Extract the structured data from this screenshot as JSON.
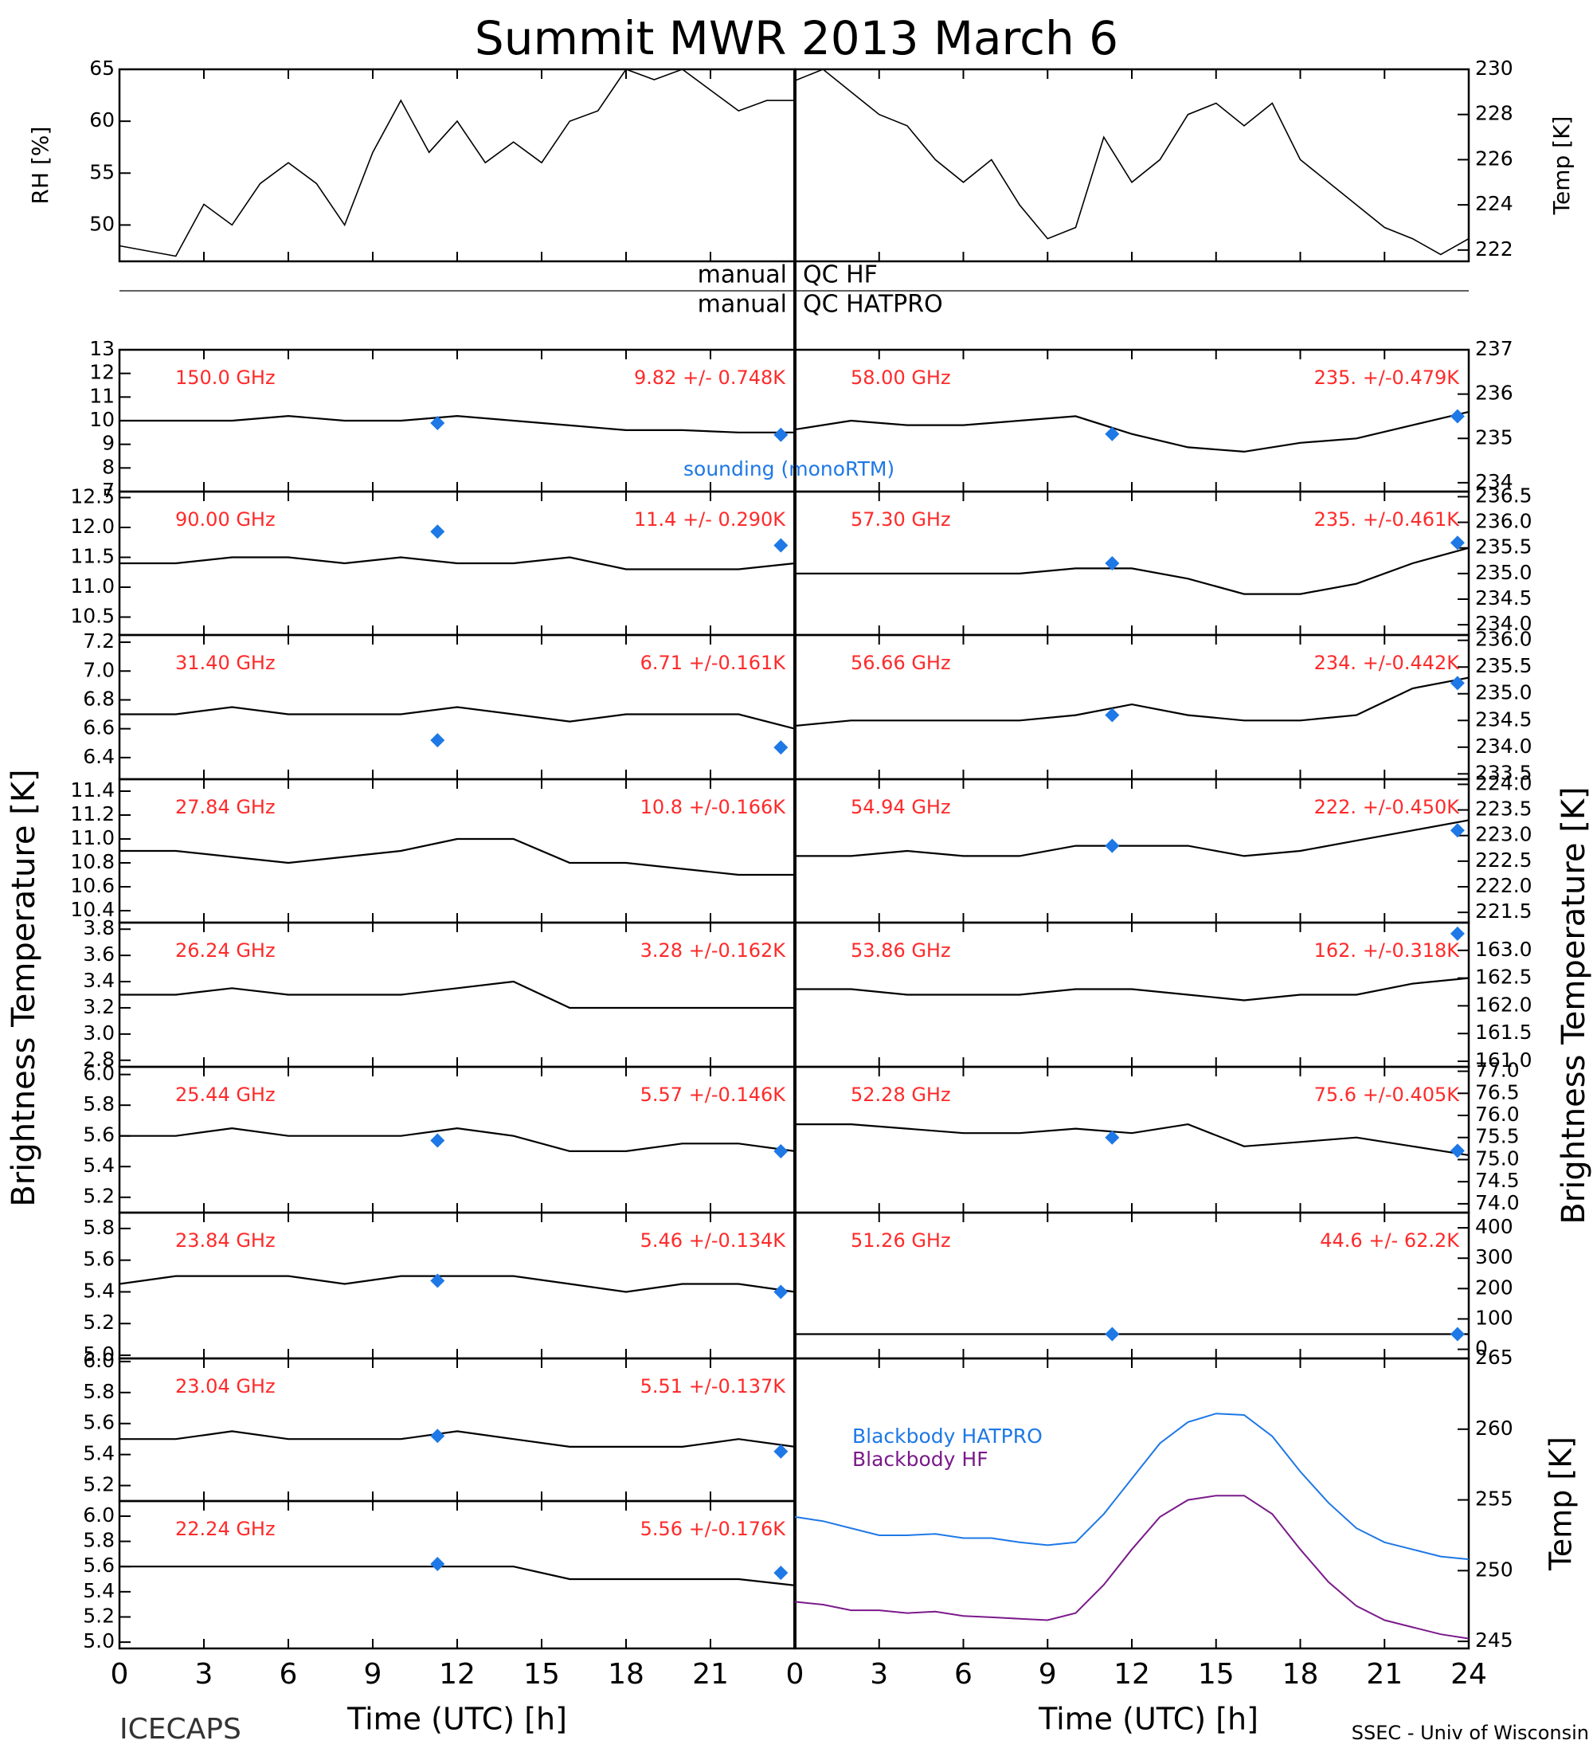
{
  "title": "Summit MWR 2013 March  6",
  "qc": [
    {
      "left": "manual",
      "right": "QC HF"
    },
    {
      "left": "manual",
      "right": "QC HATPRO"
    }
  ],
  "ylabel": "Brightness Temperature [K]",
  "sounding_label": "sounding (monoRTM)",
  "xlabel": "Time (UTC) [h]",
  "xlim": [
    0,
    24
  ],
  "xticks_left": [
    0,
    3,
    6,
    9,
    12,
    15,
    18,
    21
  ],
  "xticks_right": [
    0,
    3,
    6,
    9,
    12,
    15,
    18,
    21,
    24
  ],
  "footer_left": "ICECAPS",
  "footer_right": "SSEC - Univ of Wisconsin",
  "chart_data": [
    {
      "type": "line",
      "ylabel": "RH [%]",
      "ylim": [
        46.5,
        65
      ],
      "yticks": [
        50,
        55,
        60,
        65
      ],
      "x": [
        0,
        1,
        2,
        3,
        4,
        5,
        6,
        7,
        8,
        9,
        10,
        11,
        12,
        13,
        14,
        15,
        16,
        17,
        18,
        19,
        20,
        21,
        22,
        23,
        24
      ],
      "values": [
        48,
        47.5,
        47,
        52,
        50,
        54,
        56,
        54,
        50,
        57,
        62,
        57,
        60,
        56,
        58,
        56,
        60,
        61,
        65,
        64,
        65,
        63,
        61,
        62,
        62
      ]
    },
    {
      "type": "line",
      "ylabel": "Temp [K]",
      "ylim": [
        221.5,
        230
      ],
      "yticks": [
        222,
        224,
        226,
        228,
        230
      ],
      "x": [
        0,
        1,
        2,
        3,
        4,
        5,
        6,
        7,
        8,
        9,
        10,
        11,
        12,
        13,
        14,
        15,
        16,
        17,
        18,
        19,
        20,
        21,
        22,
        23,
        24
      ],
      "values": [
        229.5,
        230,
        229,
        228,
        227.5,
        226,
        225,
        226,
        224,
        222.5,
        223,
        227,
        225,
        226,
        228,
        228.5,
        227.5,
        228.5,
        226,
        225,
        224,
        223,
        222.5,
        221.8,
        222.5
      ]
    },
    {
      "type": "line",
      "label": "150.0 GHz",
      "stats": "9.82 +/- 0.748K",
      "ylim": [
        7,
        13
      ],
      "yticks": [
        7,
        8,
        9,
        10,
        11,
        12,
        13
      ],
      "x": [
        0,
        2,
        4,
        6,
        8,
        10,
        12,
        14,
        16,
        18,
        20,
        22,
        24
      ],
      "values": [
        10,
        10,
        10,
        10.2,
        10,
        10,
        10.2,
        10,
        9.8,
        9.6,
        9.6,
        9.5,
        9.5
      ],
      "sounding": {
        "x": [
          11.3,
          23.5
        ],
        "values": [
          9.9,
          9.4
        ]
      }
    },
    {
      "type": "line",
      "label": "90.00 GHz",
      "stats": "11.4 +/- 0.290K",
      "ylim": [
        10.2,
        12.6
      ],
      "yticks": [
        10.5,
        {
          "value": 11,
          "label": "11.0"
        },
        11.5,
        {
          "value": 12,
          "label": "12.0"
        },
        12.5
      ],
      "x": [
        0,
        2,
        4,
        6,
        8,
        10,
        12,
        14,
        16,
        18,
        20,
        22,
        24
      ],
      "values": [
        11.4,
        11.4,
        11.5,
        11.5,
        11.4,
        11.5,
        11.4,
        11.4,
        11.5,
        11.3,
        11.3,
        11.3,
        11.4
      ],
      "sounding": {
        "x": [
          11.3,
          23.5
        ],
        "values": [
          11.93,
          11.7
        ]
      }
    },
    {
      "type": "line",
      "label": "31.40 GHz",
      "stats": "6.71 +/-0.161K",
      "ylim": [
        6.25,
        7.25
      ],
      "yticks": [
        6.4,
        6.6,
        6.8,
        {
          "value": 7,
          "label": "7.0"
        },
        7.2
      ],
      "x": [
        0,
        2,
        4,
        6,
        8,
        10,
        12,
        14,
        16,
        18,
        20,
        22,
        24
      ],
      "values": [
        6.7,
        6.7,
        6.75,
        6.7,
        6.7,
        6.7,
        6.75,
        6.7,
        6.65,
        6.7,
        6.7,
        6.7,
        6.6
      ],
      "sounding": {
        "x": [
          11.3,
          23.5
        ],
        "values": [
          6.52,
          6.47
        ]
      }
    },
    {
      "type": "line",
      "label": "27.84 GHz",
      "stats": "10.8 +/-0.166K",
      "ylim": [
        10.3,
        11.5
      ],
      "yticks": [
        10.4,
        10.6,
        10.8,
        {
          "value": 11,
          "label": "11.0"
        },
        11.2,
        11.4
      ],
      "x": [
        0,
        2,
        4,
        6,
        8,
        10,
        12,
        14,
        16,
        18,
        20,
        22,
        24
      ],
      "values": [
        10.9,
        10.9,
        10.85,
        10.8,
        10.85,
        10.9,
        11,
        11,
        10.8,
        10.8,
        10.75,
        10.7,
        10.7
      ]
    },
    {
      "type": "line",
      "label": "26.24 GHz",
      "stats": "3.28 +/-0.162K",
      "ylim": [
        2.75,
        3.85
      ],
      "yticks": [
        2.8,
        {
          "value": 3,
          "label": "3.0"
        },
        3.2,
        3.4,
        3.6,
        3.8
      ],
      "x": [
        0,
        2,
        4,
        6,
        8,
        10,
        12,
        14,
        16,
        18,
        20,
        22,
        24
      ],
      "values": [
        3.3,
        3.3,
        3.35,
        3.3,
        3.3,
        3.3,
        3.35,
        3.4,
        3.2,
        3.2,
        3.2,
        3.2,
        3.2
      ]
    },
    {
      "type": "line",
      "label": "25.44 GHz",
      "stats": "5.57 +/-0.146K",
      "ylim": [
        5.1,
        6.05
      ],
      "yticks": [
        5.2,
        5.4,
        5.6,
        5.8,
        {
          "value": 6,
          "label": "6.0"
        }
      ],
      "x": [
        0,
        2,
        4,
        6,
        8,
        10,
        12,
        14,
        16,
        18,
        20,
        22,
        24
      ],
      "values": [
        5.6,
        5.6,
        5.65,
        5.6,
        5.6,
        5.6,
        5.65,
        5.6,
        5.5,
        5.5,
        5.55,
        5.55,
        5.5
      ],
      "sounding": {
        "x": [
          11.3,
          23.5
        ],
        "values": [
          5.57,
          5.5
        ]
      }
    },
    {
      "type": "line",
      "label": "23.84 GHz",
      "stats": "5.46 +/-0.134K",
      "ylim": [
        4.98,
        5.9
      ],
      "yticks": [
        {
          "value": 5,
          "label": "5.0"
        },
        5.2,
        5.4,
        5.6,
        5.8
      ],
      "x": [
        0,
        2,
        4,
        6,
        8,
        10,
        12,
        14,
        16,
        18,
        20,
        22,
        24
      ],
      "values": [
        5.45,
        5.5,
        5.5,
        5.5,
        5.45,
        5.5,
        5.5,
        5.5,
        5.45,
        5.4,
        5.45,
        5.45,
        5.4
      ],
      "sounding": {
        "x": [
          11.3,
          23.5
        ],
        "values": [
          5.47,
          5.4
        ]
      }
    },
    {
      "type": "line",
      "label": "23.04 GHz",
      "stats": "5.51 +/-0.137K",
      "ylim": [
        5.1,
        6.02
      ],
      "yticks": [
        5.2,
        5.4,
        5.6,
        5.8,
        {
          "value": 6,
          "label": "6.0"
        }
      ],
      "x": [
        0,
        2,
        4,
        6,
        8,
        10,
        12,
        14,
        16,
        18,
        20,
        22,
        24
      ],
      "values": [
        5.5,
        5.5,
        5.55,
        5.5,
        5.5,
        5.5,
        5.55,
        5.5,
        5.45,
        5.45,
        5.45,
        5.5,
        5.45
      ],
      "sounding": {
        "x": [
          11.3,
          23.5
        ],
        "values": [
          5.52,
          5.42
        ]
      }
    },
    {
      "type": "line",
      "label": "22.24 GHz",
      "stats": "5.56 +/-0.176K",
      "ylim": [
        4.95,
        6.12
      ],
      "yticks": [
        {
          "value": 5,
          "label": "5.0"
        },
        5.2,
        5.4,
        5.6,
        5.8,
        {
          "value": 6,
          "label": "6.0"
        }
      ],
      "x": [
        0,
        2,
        4,
        6,
        8,
        10,
        12,
        14,
        16,
        18,
        20,
        22,
        24
      ],
      "values": [
        5.6,
        5.6,
        5.6,
        5.6,
        5.6,
        5.6,
        5.6,
        5.6,
        5.5,
        5.5,
        5.5,
        5.5,
        5.45
      ],
      "sounding": {
        "x": [
          11.3,
          23.5
        ],
        "values": [
          5.62,
          5.55
        ]
      }
    },
    {
      "type": "line",
      "label": "58.00 GHz",
      "stats": "235. +/-0.479K",
      "ylim": [
        233.8,
        237
      ],
      "yticks": [
        234,
        235,
        236,
        237
      ],
      "x": [
        0,
        2,
        4,
        6,
        8,
        10,
        12,
        14,
        16,
        18,
        20,
        22,
        24
      ],
      "values": [
        235.2,
        235.4,
        235.3,
        235.3,
        235.4,
        235.5,
        235.1,
        234.8,
        234.7,
        234.9,
        235,
        235.3,
        235.6
      ],
      "sounding": {
        "x": [
          11.3,
          23.6
        ],
        "values": [
          235.1,
          235.5
        ]
      }
    },
    {
      "type": "line",
      "label": "57.30 GHz",
      "stats": "235. +/-0.461K",
      "ylim": [
        233.8,
        236.6
      ],
      "yticks": [
        {
          "value": 234,
          "label": "234.0"
        },
        234.5,
        {
          "value": 235,
          "label": "235.0"
        },
        235.5,
        {
          "value": 236,
          "label": "236.0"
        },
        236.5
      ],
      "x": [
        0,
        2,
        4,
        6,
        8,
        10,
        12,
        14,
        16,
        18,
        20,
        22,
        24
      ],
      "values": [
        235,
        235,
        235,
        235,
        235,
        235.1,
        235.1,
        234.9,
        234.6,
        234.6,
        234.8,
        235.2,
        235.5
      ],
      "sounding": {
        "x": [
          11.3,
          23.6
        ],
        "values": [
          235.2,
          235.6
        ]
      }
    },
    {
      "type": "line",
      "label": "56.66 GHz",
      "stats": "234. +/-0.442K",
      "ylim": [
        233.4,
        236.1
      ],
      "yticks": [
        233.5,
        {
          "value": 234,
          "label": "234.0"
        },
        234.5,
        {
          "value": 235,
          "label": "235.0"
        },
        235.5,
        {
          "value": 236,
          "label": "236.0"
        }
      ],
      "x": [
        0,
        2,
        4,
        6,
        8,
        10,
        12,
        14,
        16,
        18,
        20,
        22,
        24
      ],
      "values": [
        234.4,
        234.5,
        234.5,
        234.5,
        234.5,
        234.6,
        234.8,
        234.6,
        234.5,
        234.5,
        234.6,
        235.1,
        235.3
      ],
      "sounding": {
        "x": [
          11.3,
          23.6
        ],
        "values": [
          234.6,
          235.2
        ]
      }
    },
    {
      "type": "line",
      "label": "54.94 GHz",
      "stats": "222. +/-0.450K",
      "ylim": [
        221.3,
        224.1
      ],
      "yticks": [
        221.5,
        {
          "value": 222,
          "label": "222.0"
        },
        222.5,
        {
          "value": 223,
          "label": "223.0"
        },
        223.5,
        {
          "value": 224,
          "label": "224.0"
        }
      ],
      "x": [
        0,
        2,
        4,
        6,
        8,
        10,
        12,
        14,
        16,
        18,
        20,
        22,
        24
      ],
      "values": [
        222.6,
        222.6,
        222.7,
        222.6,
        222.6,
        222.8,
        222.8,
        222.8,
        222.6,
        222.7,
        222.9,
        223.1,
        223.3
      ],
      "sounding": {
        "x": [
          11.3,
          23.6
        ],
        "values": [
          222.8,
          223.1
        ]
      }
    },
    {
      "type": "line",
      "label": "53.86 GHz",
      "stats": "162. +/-0.318K",
      "ylim": [
        160.9,
        163.5
      ],
      "yticks": [
        {
          "value": 161,
          "label": "161.0"
        },
        161.5,
        {
          "value": 162,
          "label": "162.0"
        },
        162.5,
        {
          "value": 163,
          "label": "163.0"
        }
      ],
      "x": [
        0,
        2,
        4,
        6,
        8,
        10,
        12,
        14,
        16,
        18,
        20,
        22,
        24
      ],
      "values": [
        162.3,
        162.3,
        162.2,
        162.2,
        162.2,
        162.3,
        162.3,
        162.2,
        162.1,
        162.2,
        162.2,
        162.4,
        162.5
      ],
      "sounding": {
        "x": [
          23.6
        ],
        "values": [
          163.3
        ]
      }
    },
    {
      "type": "line",
      "label": "52.28 GHz",
      "stats": "75.6 +/-0.405K",
      "ylim": [
        73.8,
        77.1
      ],
      "yticks": [
        {
          "value": 74,
          "label": "74.0"
        },
        74.5,
        {
          "value": 75,
          "label": "75.0"
        },
        75.5,
        {
          "value": 76,
          "label": "76.0"
        },
        76.5,
        {
          "value": 77,
          "label": "77.0"
        }
      ],
      "x": [
        0,
        2,
        4,
        6,
        8,
        10,
        12,
        14,
        16,
        18,
        20,
        22,
        24
      ],
      "values": [
        75.8,
        75.8,
        75.7,
        75.6,
        75.6,
        75.7,
        75.6,
        75.8,
        75.3,
        75.4,
        75.5,
        75.3,
        75.1
      ],
      "sounding": {
        "x": [
          11.3,
          23.6
        ],
        "values": [
          75.5,
          75.2
        ]
      }
    },
    {
      "type": "line",
      "label": "51.26 GHz",
      "stats": "44.6 +/- 62.2K",
      "ylim": [
        -30,
        450
      ],
      "yticks": [
        0,
        100,
        200,
        300,
        400
      ],
      "x": [
        0,
        2,
        4,
        6,
        8,
        10,
        12,
        14,
        16,
        18,
        20,
        22,
        24
      ],
      "values": [
        50,
        50,
        50,
        50,
        50,
        50,
        50,
        50,
        50,
        50,
        50,
        50,
        50
      ],
      "sounding": {
        "x": [
          11.3,
          23.6
        ],
        "values": [
          50,
          50
        ]
      }
    },
    {
      "type": "line",
      "ylabel": "Temp [K]",
      "ylim": [
        244.5,
        265
      ],
      "yticks": [
        245,
        250,
        255,
        260,
        265
      ],
      "x": [
        0,
        1,
        2,
        3,
        4,
        5,
        6,
        7,
        8,
        9,
        10,
        11,
        12,
        13,
        14,
        15,
        16,
        17,
        18,
        19,
        20,
        21,
        22,
        23,
        24
      ],
      "series": [
        {
          "name": "Blackbody HATPRO",
          "color": "#1e78e6",
          "values": [
            253.8,
            253.5,
            253,
            252.5,
            252.5,
            252.6,
            252.3,
            252.3,
            252,
            251.8,
            252,
            254,
            256.5,
            259,
            260.5,
            261.1,
            261,
            259.5,
            257,
            254.8,
            253,
            252,
            251.5,
            251,
            250.8
          ]
        },
        {
          "name": "Blackbody HF",
          "color": "#7a1a8a",
          "values": [
            247.8,
            247.6,
            247.2,
            247.2,
            247,
            247.1,
            246.8,
            246.7,
            246.6,
            246.5,
            247,
            249,
            251.5,
            253.8,
            255,
            255.3,
            255.3,
            254,
            251.5,
            249.2,
            247.5,
            246.5,
            246,
            245.5,
            245.2
          ]
        }
      ]
    }
  ]
}
